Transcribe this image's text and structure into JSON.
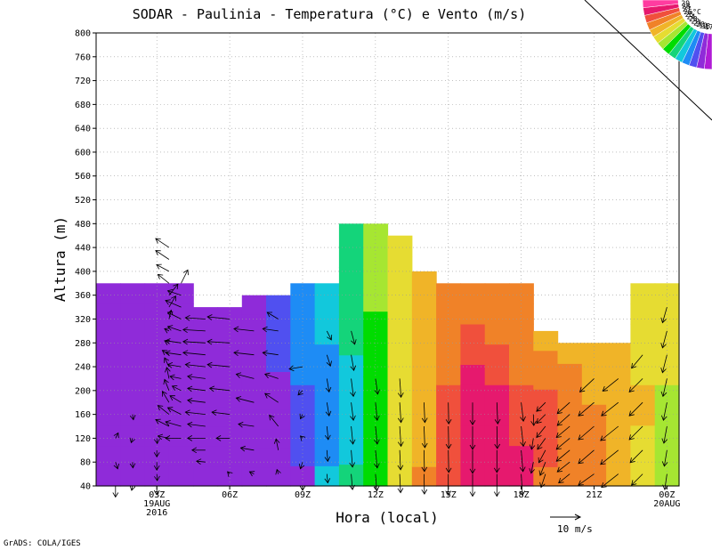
{
  "chart_data": {
    "type": "heatmap",
    "title": "SODAR - Paulinia - Temperatura (°C) e Vento (m/s)",
    "xlabel": "Hora (local)",
    "ylabel": "Altura (m)",
    "credit": "GrADS: COLA/IGES",
    "x_ticks": [
      "03Z",
      "06Z",
      "09Z",
      "12Z",
      "15Z",
      "18Z",
      "21Z",
      "00Z"
    ],
    "x_tick_sub": [
      [
        "19AUG",
        "2016"
      ],
      [],
      [],
      [],
      [],
      [],
      [],
      [
        "20AUG"
      ]
    ],
    "xlim_hours": [
      1,
      24
    ],
    "y_ticks": [
      40,
      80,
      120,
      160,
      200,
      240,
      280,
      320,
      360,
      400,
      440,
      480,
      520,
      560,
      600,
      640,
      680,
      720,
      760,
      800
    ],
    "ylim": [
      40,
      800
    ],
    "grid": true,
    "wind_scale": {
      "label": "10 m/s",
      "value": 10
    },
    "colorbar": {
      "unit": "°C",
      "levels": [
        17,
        18,
        19,
        20,
        21,
        22,
        23,
        24,
        25,
        26,
        27,
        28,
        29
      ],
      "colors": [
        "#b01bd6",
        "#8f2bd9",
        "#5050f0",
        "#1e8cf5",
        "#12c8dc",
        "#14d47a",
        "#00dc00",
        "#a6e632",
        "#e6dc32",
        "#f0b428",
        "#f08228",
        "#f0503c",
        "#e6196e",
        "#ff3ca0"
      ]
    },
    "temperature_columns": [
      {
        "hour": 1.0,
        "top": 380,
        "temps": [
          17.0,
          17.0,
          17.0,
          17.0,
          17.0,
          17.0,
          17.0,
          17.5,
          17.8,
          17.8
        ]
      },
      {
        "hour": 2.0,
        "top": 380,
        "temps": [
          17.0,
          17.0,
          17.0,
          17.0,
          17.0,
          17.0,
          17.3,
          17.5,
          17.8,
          17.8
        ]
      },
      {
        "hour": 3.0,
        "top": 380,
        "temps": [
          17.0,
          17.0,
          17.0,
          17.0,
          17.0,
          17.0,
          17.5,
          17.8,
          17.8,
          17.8
        ]
      },
      {
        "hour": 4.0,
        "top": 380,
        "temps": [
          17.0,
          17.0,
          17.0,
          17.0,
          17.0,
          17.0,
          17.2,
          17.5,
          17.8,
          17.8
        ]
      },
      {
        "hour": 5.0,
        "top": 340,
        "temps": [
          17.0,
          17.0,
          17.0,
          17.0,
          17.0,
          17.0,
          17.3,
          17.5,
          17.8
        ]
      },
      {
        "hour": 6.0,
        "top": 340,
        "temps": [
          17.0,
          17.0,
          17.0,
          17.0,
          17.0,
          17.0,
          17.0,
          17.5,
          17.8
        ]
      },
      {
        "hour": 7.0,
        "top": 360,
        "temps": [
          17.0,
          17.0,
          17.0,
          17.0,
          17.0,
          17.0,
          17.0,
          17.5,
          17.8,
          17.8
        ]
      },
      {
        "hour": 8.0,
        "top": 360,
        "temps": [
          17.0,
          17.0,
          17.2,
          17.4,
          17.6,
          17.8,
          18.0,
          18.5,
          18.5,
          18.5
        ]
      },
      {
        "hour": 9.0,
        "top": 380,
        "temps": [
          17.5,
          18.0,
          18.5,
          18.5,
          18.8,
          19.0,
          19.0,
          19.2,
          19.2,
          19.2
        ]
      },
      {
        "hour": 10.0,
        "top": 380,
        "temps": [
          20.2,
          19.8,
          19.5,
          19.5,
          19.5,
          19.6,
          19.8,
          20.0,
          20.0,
          20.0
        ]
      },
      {
        "hour": 11.0,
        "top": 480,
        "temps": [
          21.0,
          20.8,
          20.5,
          20.5,
          20.6,
          20.8,
          21.0,
          21.0,
          21.2,
          21.5,
          21.5,
          21.5
        ]
      },
      {
        "hour": 12.0,
        "top": 480,
        "temps": [
          22.5,
          22.3,
          22.0,
          22.0,
          22.2,
          22.4,
          22.5,
          22.8,
          23.0,
          23.3,
          23.5,
          23.5
        ]
      },
      {
        "hour": 13.0,
        "top": 460,
        "temps": [
          24.5,
          24.5,
          24.2,
          24.0,
          24.0,
          24.2,
          24.3,
          24.4,
          24.5,
          24.6,
          24.8,
          24.8
        ]
      },
      {
        "hour": 14.0,
        "top": 400,
        "temps": [
          26.0,
          25.8,
          25.6,
          25.5,
          25.5,
          25.5,
          25.5,
          25.6,
          25.7,
          25.8,
          25.8
        ]
      },
      {
        "hour": 15.0,
        "top": 380,
        "temps": [
          27.5,
          27.2,
          27.0,
          27.0,
          27.0,
          26.8,
          26.8,
          26.5,
          26.5,
          26.5
        ]
      },
      {
        "hour": 16.0,
        "top": 380,
        "temps": [
          28.5,
          28.5,
          28.5,
          28.5,
          28.2,
          28.0,
          27.5,
          27.0,
          26.8,
          26.5
        ]
      },
      {
        "hour": 17.0,
        "top": 380,
        "temps": [
          28.2,
          28.5,
          28.5,
          28.2,
          28.0,
          27.5,
          27.0,
          26.8,
          26.5,
          26.0
        ]
      },
      {
        "hour": 18.0,
        "top": 380,
        "temps": [
          28.0,
          28.0,
          27.8,
          27.5,
          27.0,
          26.5,
          26.5,
          26.8,
          26.5,
          26.0
        ]
      },
      {
        "hour": 19.0,
        "top": 300,
        "temps": [
          26.5,
          27.0,
          27.5,
          27.5,
          27.0,
          26.5,
          26.0,
          25.8
        ]
      },
      {
        "hour": 20.0,
        "top": 280,
        "temps": [
          26.0,
          26.0,
          26.2,
          26.5,
          26.3,
          26.0,
          25.8
        ]
      },
      {
        "hour": 21.0,
        "top": 280,
        "temps": [
          26.0,
          26.0,
          26.0,
          26.0,
          25.8,
          25.5,
          25.5
        ]
      },
      {
        "hour": 22.0,
        "top": 280,
        "temps": [
          25.0,
          25.3,
          25.5,
          25.5,
          25.5,
          25.5,
          25.2
        ]
      },
      {
        "hour": 23.0,
        "top": 380,
        "temps": [
          24.5,
          24.5,
          24.8,
          25.0,
          25.0,
          24.8,
          24.5,
          24.5,
          24.3,
          24.0
        ]
      },
      {
        "hour": 24.0,
        "top": 380,
        "temps": [
          23.3,
          23.3,
          23.5,
          23.5,
          23.8,
          24.0,
          24.0,
          24.0,
          24.0,
          24.0
        ]
      }
    ],
    "wind_columns": [
      {
        "hour": 1.3,
        "h": [
          40,
          80,
          120
        ],
        "u": [
          0.0,
          0.5,
          0.6
        ],
        "v": [
          -2.5,
          -1.5,
          1.2
        ]
      },
      {
        "hour": 2.0,
        "h": [
          40,
          80,
          120,
          160
        ],
        "u": [
          -0.2,
          0.1,
          -0.3,
          0.2
        ],
        "v": [
          -1.0,
          -1.3,
          -1.0,
          -1.2
        ]
      },
      {
        "hour": 3.0,
        "h": [
          40,
          60,
          80,
          100,
          120
        ],
        "u": [
          0.0,
          0.1,
          0.0,
          0.0,
          0.1
        ],
        "v": [
          -2.0,
          -1.5,
          -1.8,
          -1.5,
          -1.2
        ]
      },
      {
        "hour": 3.5,
        "h": [
          120,
          140,
          160,
          180,
          200,
          220,
          240,
          260,
          280,
          300,
          320,
          340,
          360,
          380,
          400,
          420,
          440
        ],
        "u": [
          -2.5,
          -3.0,
          -2.5,
          -1.5,
          -1.0,
          -0.5,
          -1.0,
          -1.5,
          -1.0,
          -1.0,
          0.5,
          1.5,
          2.0,
          -2.5,
          -2.8,
          -3.0,
          -3.0
        ],
        "v": [
          0.5,
          1.5,
          2.0,
          2.5,
          2.5,
          2.5,
          2.0,
          1.0,
          0.5,
          0.5,
          2.0,
          2.5,
          2.5,
          2.0,
          1.5,
          2.0,
          2.0
        ]
      },
      {
        "hour": 4.0,
        "h": [
          120,
          140,
          160,
          180,
          200,
          220,
          240,
          260,
          280,
          300,
          320,
          340,
          360,
          380
        ],
        "u": [
          -3.5,
          -3.5,
          -3.0,
          -2.5,
          -2.0,
          -2.5,
          -3.0,
          -3.5,
          -3.5,
          -3.0,
          -3.0,
          -3.5,
          -3.0,
          1.5
        ],
        "v": [
          0.0,
          1.0,
          1.5,
          1.5,
          1.0,
          0.5,
          0.5,
          0.5,
          0.5,
          1.0,
          1.5,
          1.5,
          1.0,
          3.0
        ]
      },
      {
        "hour": 5.0,
        "h": [
          80,
          100,
          120,
          140,
          160,
          180,
          200,
          220,
          240,
          260,
          280,
          300,
          320
        ],
        "u": [
          -2.0,
          -3.0,
          -4.0,
          -4.0,
          -4.5,
          -4.0,
          -4.0,
          -4.0,
          -4.5,
          -5.0,
          -5.0,
          -5.0,
          -4.5
        ],
        "v": [
          0.2,
          0.0,
          0.0,
          0.5,
          0.5,
          0.5,
          0.5,
          0.5,
          0.5,
          0.5,
          0.3,
          0.3,
          0.3
        ]
      },
      {
        "hour": 6.0,
        "h": [
          60,
          120,
          160,
          200,
          240,
          280,
          320
        ],
        "u": [
          -0.5,
          -3.0,
          -4.0,
          -4.5,
          -5.0,
          -5.0,
          -5.0
        ],
        "v": [
          0.5,
          0.0,
          0.5,
          0.5,
          0.5,
          0.3,
          0.5
        ]
      },
      {
        "hour": 7.0,
        "h": [
          60,
          100,
          140,
          180,
          220,
          260,
          300
        ],
        "u": [
          -1.0,
          -3.0,
          -3.5,
          -4.0,
          -4.0,
          -4.5,
          -4.5
        ],
        "v": [
          0.5,
          0.5,
          0.5,
          1.0,
          1.0,
          0.5,
          0.5
        ]
      },
      {
        "hour": 8.0,
        "h": [
          60,
          100,
          140,
          180,
          220,
          260,
          300,
          320
        ],
        "u": [
          -0.3,
          -0.5,
          -2.0,
          -3.0,
          -3.0,
          -3.5,
          -3.5,
          -2.5
        ],
        "v": [
          1.0,
          2.5,
          2.5,
          2.0,
          1.0,
          0.5,
          0.5,
          1.5
        ]
      },
      {
        "hour": 9.0,
        "h": [
          40,
          80,
          120,
          160,
          200,
          240
        ],
        "u": [
          0.0,
          -0.5,
          -0.5,
          -0.5,
          -1.0,
          -3.0
        ],
        "v": [
          -1.0,
          -1.5,
          0.5,
          -1.0,
          -1.0,
          -0.5
        ]
      },
      {
        "hour": 10.0,
        "h": [
          60,
          100,
          140,
          180,
          220,
          260,
          300
        ],
        "u": [
          0.2,
          0.2,
          0.3,
          0.5,
          0.5,
          0.8,
          1.0
        ],
        "v": [
          -2.0,
          -2.5,
          -3.0,
          -3.0,
          -3.0,
          -2.5,
          -2.0
        ]
      },
      {
        "hour": 11.0,
        "h": [
          60,
          100,
          140,
          180,
          220,
          260,
          300
        ],
        "u": [
          0.3,
          0.3,
          0.4,
          0.5,
          0.5,
          0.6,
          0.8
        ],
        "v": [
          -3.5,
          -3.8,
          -4.0,
          -4.0,
          -4.0,
          -3.5,
          -3.0
        ]
      },
      {
        "hour": 12.0,
        "h": [
          60,
          100,
          140,
          180,
          220
        ],
        "u": [
          0.3,
          0.4,
          0.4,
          0.4,
          0.5
        ],
        "v": [
          -3.8,
          -4.0,
          -4.0,
          -4.0,
          -3.5
        ]
      },
      {
        "hour": 13.0,
        "h": [
          60,
          100,
          140,
          180,
          220
        ],
        "u": [
          0.2,
          0.2,
          0.3,
          0.3,
          0.3
        ],
        "v": [
          -4.2,
          -4.4,
          -4.5,
          -4.5,
          -4.2
        ]
      },
      {
        "hour": 14.0,
        "h": [
          60,
          100,
          140,
          180
        ],
        "u": [
          0.1,
          0.1,
          0.2,
          0.2
        ],
        "v": [
          -4.5,
          -4.8,
          -4.8,
          -4.5
        ]
      },
      {
        "hour": 15.0,
        "h": [
          60,
          100,
          140,
          180
        ],
        "u": [
          0.0,
          0.1,
          0.1,
          0.1
        ],
        "v": [
          -4.8,
          -5.0,
          -5.0,
          -4.8
        ]
      },
      {
        "hour": 16.0,
        "h": [
          60,
          100,
          140,
          180
        ],
        "u": [
          0.0,
          0.0,
          0.0,
          0.0
        ],
        "v": [
          -5.0,
          -5.2,
          -5.2,
          -5.0
        ]
      },
      {
        "hour": 17.0,
        "h": [
          60,
          100,
          140,
          180
        ],
        "u": [
          0.0,
          0.0,
          0.1,
          0.2
        ],
        "v": [
          -5.0,
          -5.0,
          -5.0,
          -4.8
        ]
      },
      {
        "hour": 18.0,
        "h": [
          60,
          100,
          140,
          180
        ],
        "u": [
          0.3,
          0.4,
          0.5,
          0.5
        ],
        "v": [
          -4.8,
          -4.8,
          -4.5,
          -4.2
        ]
      },
      {
        "hour": 18.5,
        "h": [
          80,
          120,
          160
        ],
        "u": [
          -0.5,
          -0.4,
          0.1
        ],
        "v": [
          -2.5,
          -2.5,
          -2.5
        ]
      },
      {
        "hour": 19.0,
        "h": [
          60,
          80,
          100,
          120,
          140,
          160,
          180
        ],
        "u": [
          -1.0,
          -1.2,
          -1.5,
          -1.8,
          -2.0,
          -2.0,
          -2.0
        ],
        "v": [
          -3.0,
          -3.0,
          -2.8,
          -2.5,
          -2.5,
          -2.0,
          -2.0
        ]
      },
      {
        "hour": 20.0,
        "h": [
          60,
          80,
          100,
          120,
          140,
          160,
          180
        ],
        "u": [
          -2.5,
          -2.8,
          -3.0,
          -3.0,
          -3.0,
          -2.8,
          -2.8
        ],
        "v": [
          -2.0,
          -2.2,
          -2.5,
          -2.5,
          -2.5,
          -2.5,
          -2.5
        ]
      },
      {
        "hour": 21.0,
        "h": [
          60,
          100,
          140,
          180,
          220
        ],
        "u": [
          -3.5,
          -3.5,
          -3.5,
          -3.5,
          -3.2
        ],
        "v": [
          -2.5,
          -3.0,
          -3.0,
          -3.0,
          -3.0
        ]
      },
      {
        "hour": 22.0,
        "h": [
          60,
          100,
          140,
          180,
          220
        ],
        "u": [
          -3.8,
          -4.0,
          -4.0,
          -3.8,
          -3.5
        ],
        "v": [
          -3.0,
          -3.2,
          -3.2,
          -3.0,
          -2.8
        ]
      },
      {
        "hour": 23.0,
        "h": [
          60,
          100,
          140,
          180,
          220,
          260
        ],
        "u": [
          -2.5,
          -2.8,
          -3.0,
          -3.0,
          -3.0,
          -2.5
        ],
        "v": [
          -2.5,
          -2.8,
          -3.0,
          -3.0,
          -3.0,
          -3.0
        ]
      },
      {
        "hour": 24.0,
        "h": [
          60,
          100,
          140,
          180,
          220,
          260,
          300,
          340
        ],
        "u": [
          -0.5,
          -0.6,
          -0.7,
          -0.8,
          -0.9,
          -1.0,
          -1.0,
          -1.0
        ],
        "v": [
          -3.5,
          -3.6,
          -3.8,
          -4.0,
          -4.0,
          -4.0,
          -3.8,
          -3.5
        ]
      }
    ]
  }
}
